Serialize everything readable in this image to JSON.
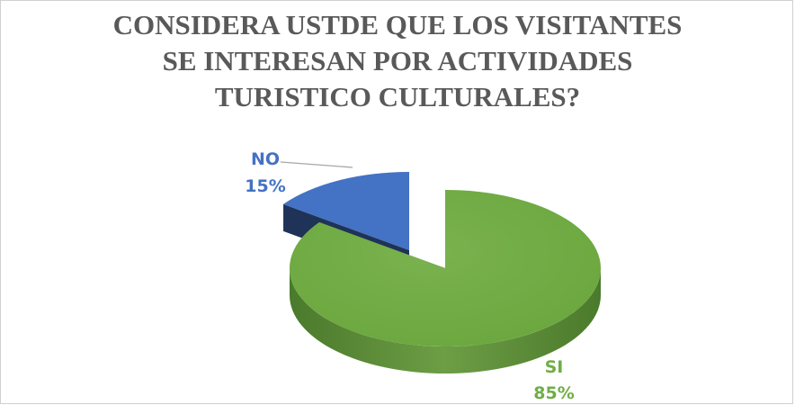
{
  "chart_data": {
    "type": "pie",
    "title_lines": [
      "CONSIDERA USTDE QUE LOS VISITANTES",
      "SE INTERESAN POR ACTIVIDADES",
      "TURISTICO CULTURALES?"
    ],
    "slices": [
      {
        "label": "SI",
        "value": 85,
        "display": "85%",
        "color": "#70ad47"
      },
      {
        "label": "NO",
        "value": 15,
        "display": "15%",
        "color": "#4472c4"
      }
    ],
    "legend": "none",
    "style": "3d-exploded"
  }
}
